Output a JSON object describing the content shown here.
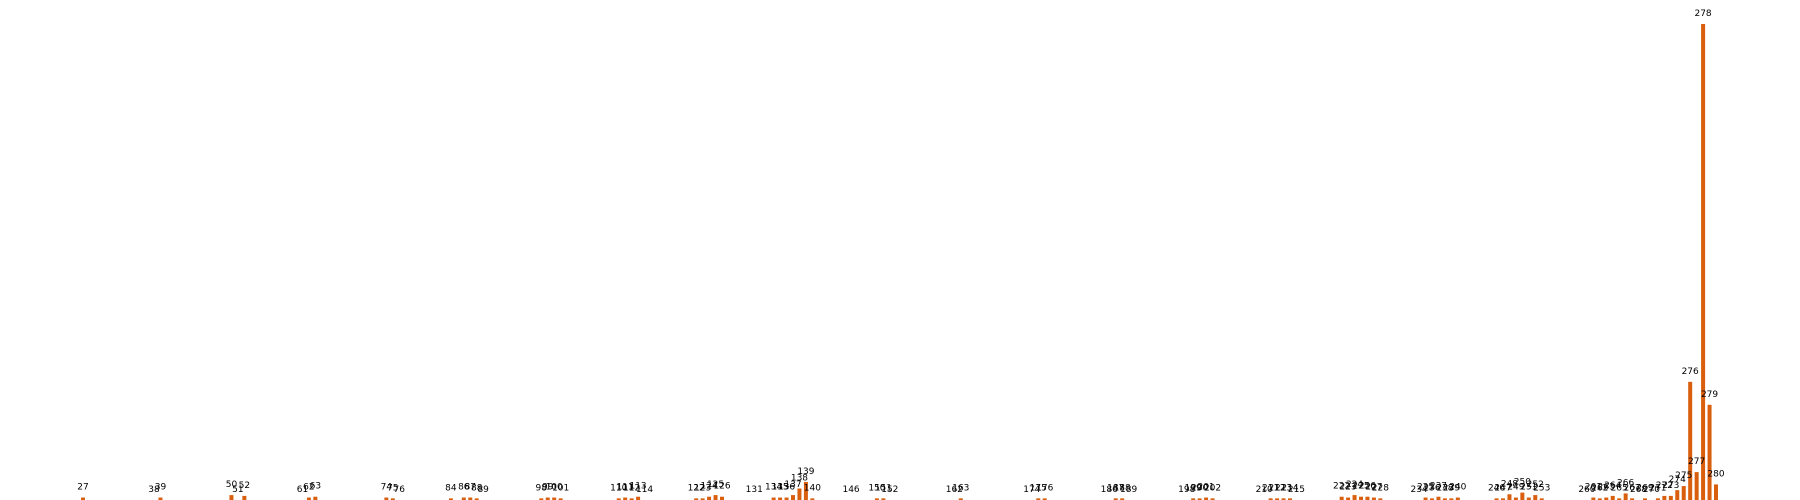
{
  "chart_data": {
    "type": "bar",
    "title": "",
    "xlabel": "",
    "ylabel": "",
    "bar_color": "#d95f0e",
    "grid": false,
    "axes_visible": false,
    "ylim": [
      0,
      2900
    ],
    "categories": [
      27,
      38,
      39,
      50,
      51,
      52,
      61,
      62,
      63,
      74,
      75,
      76,
      84,
      86,
      87,
      88,
      89,
      98,
      99,
      100,
      101,
      110,
      111,
      112,
      113,
      114,
      122,
      123,
      124,
      125,
      126,
      131,
      134,
      135,
      136,
      137,
      138,
      139,
      140,
      146,
      150,
      151,
      152,
      162,
      163,
      174,
      175,
      176,
      186,
      187,
      188,
      189,
      198,
      199,
      200,
      201,
      202,
      210,
      211,
      212,
      213,
      214,
      215,
      222,
      223,
      224,
      225,
      226,
      227,
      228,
      234,
      235,
      236,
      237,
      238,
      239,
      240,
      246,
      247,
      248,
      249,
      250,
      251,
      252,
      253,
      260,
      261,
      262,
      263,
      264,
      265,
      266,
      267,
      268,
      269,
      270,
      271,
      272,
      273,
      274,
      275,
      276,
      277,
      278,
      279,
      280
    ],
    "values": [
      15,
      0,
      15,
      30,
      0,
      25,
      0,
      15,
      20,
      15,
      10,
      0,
      10,
      15,
      15,
      10,
      0,
      10,
      15,
      15,
      10,
      10,
      15,
      10,
      20,
      0,
      10,
      10,
      20,
      30,
      20,
      0,
      15,
      15,
      15,
      30,
      70,
      110,
      10,
      0,
      10,
      10,
      0,
      0,
      10,
      0,
      10,
      10,
      0,
      10,
      10,
      0,
      0,
      10,
      10,
      15,
      10,
      0,
      10,
      10,
      10,
      10,
      0,
      20,
      15,
      30,
      20,
      20,
      15,
      10,
      0,
      15,
      10,
      20,
      10,
      10,
      15,
      10,
      10,
      35,
      15,
      45,
      15,
      30,
      10,
      0,
      15,
      10,
      15,
      25,
      10,
      40,
      10,
      0,
      10,
      0,
      10,
      25,
      25,
      60,
      85,
      720,
      170,
      2900,
      580,
      95
    ]
  }
}
